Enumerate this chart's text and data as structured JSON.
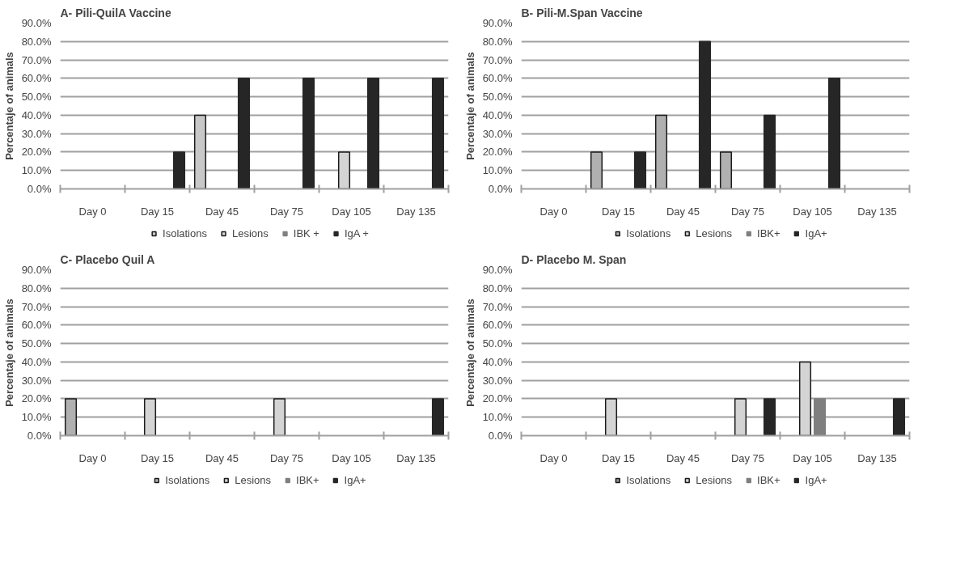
{
  "chart_data": [
    {
      "type": "bar",
      "title": "A- Pili-QuilA Vaccine",
      "ylabel": "Percentaje of animals",
      "categories": [
        "Day 0",
        "Day 15",
        "Day 45",
        "Day 75",
        "Day 105",
        "Day 135"
      ],
      "ylim": [
        0,
        90
      ],
      "yticks": [
        {
          "value": 0,
          "label": "0.0%"
        },
        {
          "value": 10,
          "label": "10.0%"
        },
        {
          "value": 20,
          "label": "20.0%"
        },
        {
          "value": 30,
          "label": "30.0%"
        },
        {
          "value": 40,
          "label": "40.0%"
        },
        {
          "value": 50,
          "label": "50.0%"
        },
        {
          "value": 60,
          "label": "60.0%"
        },
        {
          "value": 70,
          "label": "70.0%"
        },
        {
          "value": 80,
          "label": "80.0%"
        },
        {
          "value": 90,
          "label": "90.0%"
        }
      ],
      "grid": "y",
      "legend": "bottom",
      "series": [
        {
          "name": "Isolations",
          "color": "#c8c8c8",
          "values": [
            null,
            null,
            40,
            null,
            null,
            null
          ]
        },
        {
          "name": "Lesions",
          "color": "#d4d4d4",
          "values": [
            null,
            null,
            null,
            null,
            20,
            null
          ]
        },
        {
          "name": "IBK +",
          "color": "#7f7f7f",
          "values": [
            null,
            null,
            null,
            null,
            null,
            null
          ]
        },
        {
          "name": "IgA +",
          "color": "#262626",
          "values": [
            null,
            20,
            60,
            60,
            60,
            60
          ]
        }
      ]
    },
    {
      "type": "bar",
      "title": "B- Pili-M.Span Vaccine",
      "ylabel": "Percentaje of animals",
      "categories": [
        "Day 0",
        "Day 15",
        "Day 45",
        "Day 75",
        "Day 105",
        "Day 135"
      ],
      "ylim": [
        0,
        90
      ],
      "yticks": [
        {
          "value": 0,
          "label": "0.0%"
        },
        {
          "value": 10,
          "label": "10.0%"
        },
        {
          "value": 20,
          "label": "20.0%"
        },
        {
          "value": 30,
          "label": "30.0%"
        },
        {
          "value": 40,
          "label": "40.0%"
        },
        {
          "value": 50,
          "label": "50.0%"
        },
        {
          "value": 60,
          "label": "60.0%"
        },
        {
          "value": 70,
          "label": "70.0%"
        },
        {
          "value": 80,
          "label": "80.0%"
        },
        {
          "value": 90,
          "label": "90.0%"
        }
      ],
      "grid": "y",
      "legend": "bottom",
      "series": [
        {
          "name": "Isolations",
          "color": "#b0b0b0",
          "values": [
            null,
            20,
            40,
            20,
            null,
            null
          ]
        },
        {
          "name": "Lesions",
          "color": "#d4d4d4",
          "values": [
            null,
            null,
            null,
            null,
            null,
            null
          ]
        },
        {
          "name": "IBK+",
          "color": "#7f7f7f",
          "values": [
            null,
            null,
            null,
            null,
            null,
            null
          ]
        },
        {
          "name": "IgA+",
          "color": "#262626",
          "values": [
            null,
            20,
            80,
            40,
            60,
            null
          ]
        }
      ]
    },
    {
      "type": "bar",
      "title": "C- Placebo Quil A",
      "ylabel": "Percentaje of animals",
      "categories": [
        "Day 0",
        "Day 15",
        "Day 45",
        "Day 75",
        "Day 105",
        "Day 135"
      ],
      "ylim": [
        0,
        90
      ],
      "yticks": [
        {
          "value": 0,
          "label": "0.0%"
        },
        {
          "value": 10,
          "label": "10.0%"
        },
        {
          "value": 20,
          "label": "20.0%"
        },
        {
          "value": 30,
          "label": "30.0%"
        },
        {
          "value": 40,
          "label": "40.0%"
        },
        {
          "value": 50,
          "label": "50.0%"
        },
        {
          "value": 60,
          "label": "60.0%"
        },
        {
          "value": 70,
          "label": "70.0%"
        },
        {
          "value": 80,
          "label": "80.0%"
        },
        {
          "value": 90,
          "label": "90.0%"
        }
      ],
      "grid": "y",
      "legend": "bottom",
      "series": [
        {
          "name": "Isolations",
          "color": "#b0b0b0",
          "values": [
            20,
            null,
            null,
            null,
            null,
            null
          ]
        },
        {
          "name": "Lesions",
          "color": "#d4d4d4",
          "values": [
            null,
            20,
            null,
            20,
            null,
            null
          ]
        },
        {
          "name": "IBK+",
          "color": "#7f7f7f",
          "values": [
            null,
            null,
            null,
            null,
            null,
            null
          ]
        },
        {
          "name": "IgA+",
          "color": "#262626",
          "values": [
            null,
            null,
            null,
            null,
            null,
            20
          ]
        }
      ]
    },
    {
      "type": "bar",
      "title": "D- Placebo M. Span",
      "ylabel": "Percentaje of animals",
      "categories": [
        "Day 0",
        "Day 15",
        "Day 45",
        "Day 75",
        "Day 105",
        "Day 135"
      ],
      "ylim": [
        0,
        90
      ],
      "yticks": [
        {
          "value": 0,
          "label": "0.0%"
        },
        {
          "value": 10,
          "label": "10.0%"
        },
        {
          "value": 20,
          "label": "20.0%"
        },
        {
          "value": 30,
          "label": "30.0%"
        },
        {
          "value": 40,
          "label": "40.0%"
        },
        {
          "value": 50,
          "label": "50.0%"
        },
        {
          "value": 60,
          "label": "60.0%"
        },
        {
          "value": 70,
          "label": "70.0%"
        },
        {
          "value": 80,
          "label": "80.0%"
        },
        {
          "value": 90,
          "label": "90.0%"
        }
      ],
      "grid": "y",
      "legend": "bottom",
      "series": [
        {
          "name": "Isolations",
          "color": "#8c8c8c",
          "values": [
            null,
            null,
            null,
            null,
            null,
            null
          ]
        },
        {
          "name": "Lesions",
          "color": "#d4d4d4",
          "values": [
            null,
            20,
            null,
            20,
            40,
            null
          ]
        },
        {
          "name": "IBK+",
          "color": "#7f7f7f",
          "values": [
            null,
            null,
            null,
            null,
            20,
            null
          ]
        },
        {
          "name": "IgA+",
          "color": "#262626",
          "values": [
            null,
            null,
            null,
            20,
            null,
            20
          ]
        }
      ]
    }
  ]
}
